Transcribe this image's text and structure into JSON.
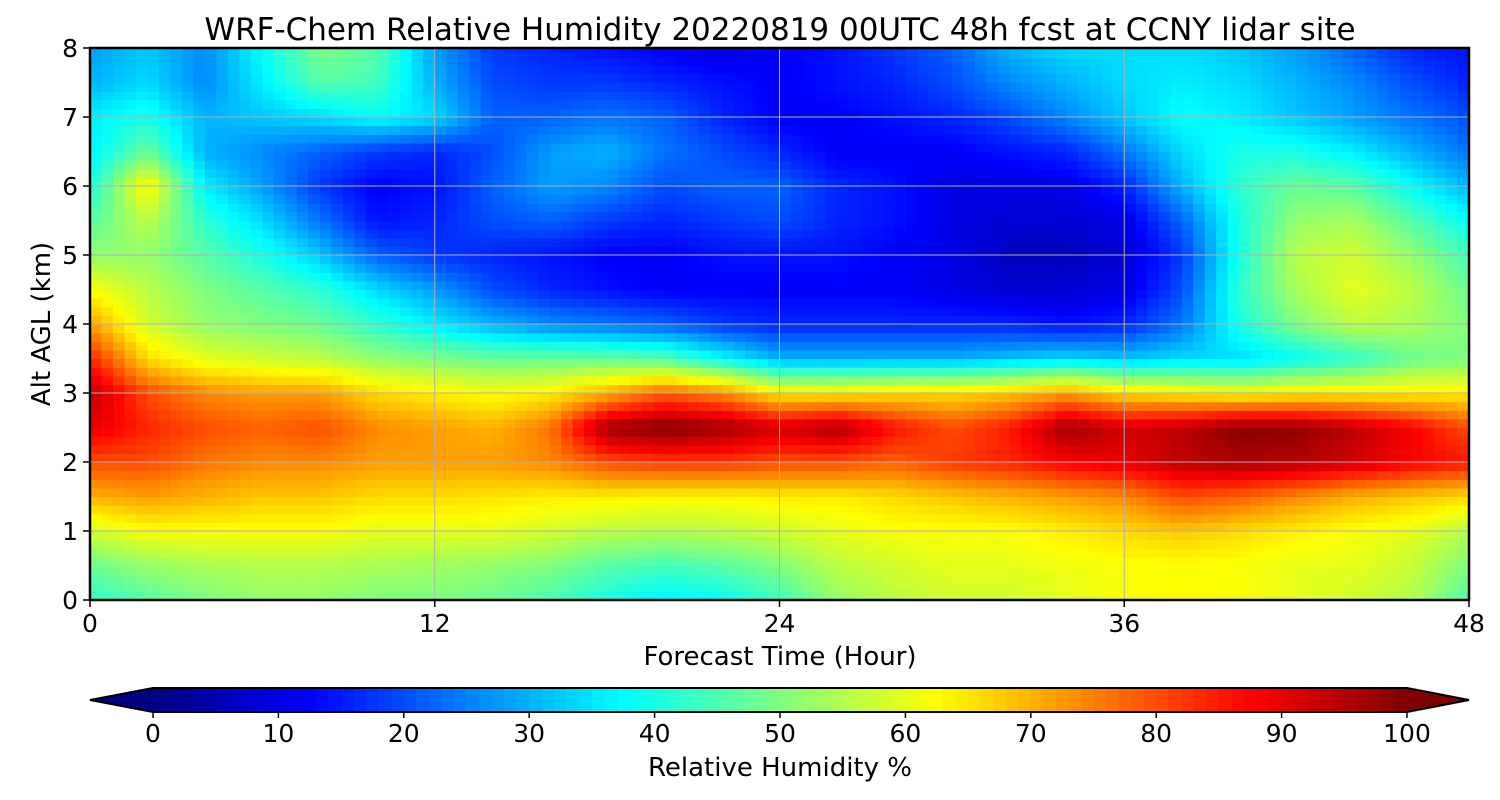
{
  "chart_data": {
    "type": "heatmap",
    "title": "WRF-Chem Relative Humidity 20220819 00UTC 48h fcst at CCNY lidar site",
    "xlabel": "Forecast Time (Hour)",
    "ylabel": "Alt AGL (km)",
    "xlim": [
      0,
      48
    ],
    "ylim": [
      0,
      8
    ],
    "x_ticks": [
      0,
      12,
      24,
      36,
      48
    ],
    "y_ticks": [
      0,
      1,
      2,
      3,
      4,
      5,
      6,
      7,
      8
    ],
    "grid": true,
    "x": [
      0,
      2,
      4,
      6,
      8,
      10,
      12,
      14,
      16,
      18,
      20,
      22,
      24,
      26,
      28,
      30,
      32,
      34,
      36,
      38,
      40,
      42,
      44,
      46,
      48
    ],
    "y": [
      0,
      0.5,
      1,
      1.5,
      2,
      2.5,
      3,
      3.5,
      4,
      4.5,
      5,
      5.5,
      6,
      6.5,
      7,
      7.5,
      8
    ],
    "z": [
      [
        42,
        46,
        50,
        52,
        52,
        50,
        50,
        48,
        45,
        40,
        36,
        38,
        44,
        52,
        56,
        58,
        58,
        60,
        62,
        63,
        62,
        60,
        58,
        55,
        45
      ],
      [
        48,
        52,
        54,
        55,
        55,
        54,
        53,
        52,
        50,
        46,
        44,
        46,
        50,
        56,
        58,
        60,
        60,
        61,
        62,
        62,
        62,
        60,
        60,
        57,
        50
      ],
      [
        58,
        62,
        62,
        62,
        62,
        60,
        60,
        60,
        58,
        56,
        55,
        56,
        58,
        60,
        62,
        62,
        62,
        64,
        66,
        68,
        66,
        64,
        62,
        60,
        55
      ],
      [
        70,
        72,
        70,
        68,
        68,
        66,
        66,
        65,
        64,
        64,
        63,
        63,
        64,
        64,
        66,
        68,
        70,
        72,
        74,
        80,
        78,
        74,
        70,
        68,
        66
      ],
      [
        80,
        80,
        76,
        74,
        74,
        72,
        72,
        72,
        74,
        80,
        82,
        82,
        80,
        80,
        78,
        82,
        84,
        88,
        90,
        94,
        96,
        95,
        92,
        88,
        85
      ],
      [
        90,
        84,
        80,
        78,
        80,
        74,
        72,
        70,
        76,
        97,
        100,
        97,
        92,
        96,
        86,
        80,
        85,
        97,
        92,
        94,
        99,
        98,
        94,
        88,
        80
      ],
      [
        94,
        80,
        74,
        72,
        72,
        66,
        64,
        62,
        64,
        70,
        78,
        74,
        64,
        64,
        66,
        66,
        68,
        72,
        66,
        64,
        62,
        64,
        64,
        64,
        64
      ],
      [
        84,
        66,
        60,
        58,
        56,
        52,
        50,
        48,
        48,
        48,
        46,
        38,
        30,
        30,
        30,
        30,
        32,
        34,
        32,
        34,
        34,
        38,
        42,
        48,
        50
      ],
      [
        72,
        58,
        52,
        50,
        48,
        42,
        36,
        30,
        26,
        24,
        22,
        18,
        16,
        16,
        16,
        16,
        16,
        14,
        16,
        24,
        40,
        50,
        56,
        54,
        50
      ],
      [
        62,
        56,
        50,
        46,
        42,
        34,
        28,
        20,
        16,
        14,
        12,
        12,
        12,
        12,
        12,
        10,
        8,
        8,
        10,
        20,
        42,
        54,
        60,
        56,
        48
      ],
      [
        52,
        52,
        46,
        40,
        32,
        22,
        18,
        16,
        14,
        12,
        12,
        14,
        14,
        14,
        12,
        10,
        6,
        6,
        8,
        18,
        40,
        56,
        58,
        52,
        44
      ],
      [
        46,
        56,
        42,
        34,
        24,
        14,
        16,
        20,
        22,
        18,
        16,
        18,
        20,
        16,
        14,
        10,
        8,
        8,
        10,
        22,
        40,
        52,
        54,
        46,
        38
      ],
      [
        40,
        64,
        36,
        28,
        18,
        12,
        14,
        22,
        28,
        26,
        20,
        22,
        22,
        16,
        14,
        10,
        10,
        10,
        16,
        30,
        42,
        48,
        46,
        38,
        30
      ],
      [
        36,
        48,
        30,
        26,
        22,
        18,
        16,
        20,
        28,
        30,
        24,
        20,
        16,
        12,
        12,
        12,
        14,
        16,
        24,
        34,
        40,
        40,
        36,
        30,
        24
      ],
      [
        36,
        40,
        30,
        32,
        34,
        38,
        34,
        22,
        22,
        24,
        22,
        16,
        12,
        12,
        14,
        16,
        20,
        26,
        32,
        38,
        36,
        32,
        28,
        24,
        20
      ],
      [
        30,
        34,
        26,
        36,
        46,
        44,
        30,
        20,
        18,
        18,
        16,
        14,
        12,
        14,
        16,
        20,
        26,
        30,
        34,
        36,
        34,
        30,
        26,
        20,
        16
      ],
      [
        28,
        32,
        26,
        38,
        50,
        46,
        28,
        18,
        16,
        14,
        12,
        10,
        12,
        14,
        18,
        22,
        30,
        34,
        34,
        34,
        32,
        28,
        22,
        16,
        14
      ]
    ],
    "colorbar": {
      "label": "Relative Humidity %",
      "ticks": [
        0,
        10,
        20,
        30,
        40,
        50,
        60,
        70,
        80,
        90,
        100
      ],
      "range": [
        0,
        100
      ],
      "extend": "both",
      "colormap": "jet"
    }
  }
}
